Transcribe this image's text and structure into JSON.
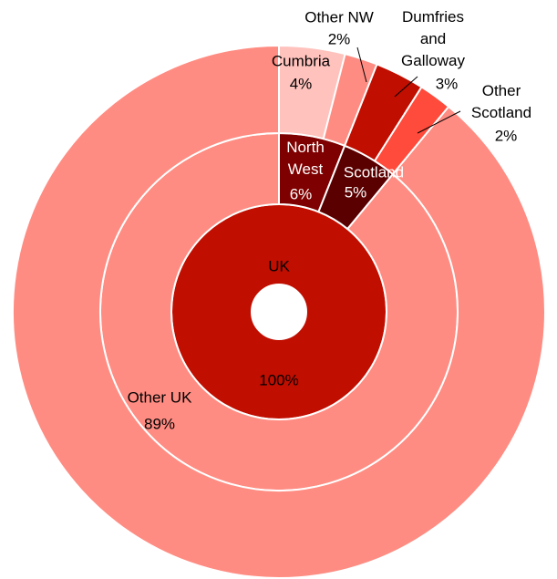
{
  "chart_data": {
    "type": "donut",
    "rings": [
      {
        "labels": [
          "UK"
        ],
        "values": [
          100
        ],
        "value_labels": [
          "100%"
        ],
        "colors": [
          "#c00e00"
        ]
      },
      {
        "labels": [
          "North West",
          "Scotland",
          "Other UK"
        ],
        "values": [
          6,
          5,
          89
        ],
        "value_labels": [
          "6%",
          "5%",
          "89%"
        ],
        "colors": [
          "#7f0000",
          "#5a0000",
          "#ff8c82"
        ]
      },
      {
        "labels": [
          "Cumbria",
          "Other NW",
          "Dumfries and Galloway",
          "Other Scotland",
          null
        ],
        "values": [
          4,
          2,
          3,
          2,
          89
        ],
        "value_labels": [
          "4%",
          "2%",
          "3%",
          "2%",
          null
        ],
        "colors": [
          "#ffc2bd",
          "#ff8c82",
          "#c00e00",
          "#ff4b3c",
          "#ff8c82"
        ]
      }
    ]
  }
}
